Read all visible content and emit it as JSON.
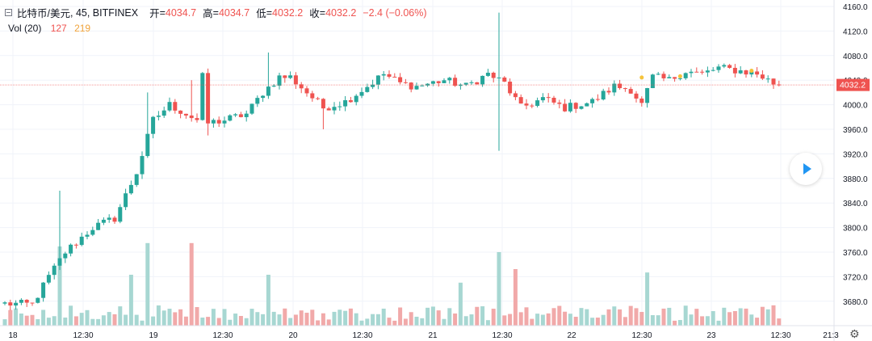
{
  "header": {
    "symbol": "比特币/美元",
    "interval": "45",
    "exchange": "BITFINEX",
    "open_label": "开",
    "open_value": "4034.7",
    "high_label": "高",
    "high_value": "4034.7",
    "low_label": "低",
    "low_value": "4032.2",
    "close_label": "收",
    "close_value": "4032.2",
    "change": "−2.4 (−0.06%)"
  },
  "volume_legend": {
    "label": "Vol (20)",
    "value_a": "127",
    "value_b": "219"
  },
  "price_tag": "4032.2",
  "colors": {
    "up": "#26a69a",
    "down": "#ef5350",
    "up_vol": "#a7d7d2",
    "down_vol": "#f1a9a9",
    "grid": "#f0f3fa",
    "dot": "#f5c33b"
  },
  "icons": [
    "collapse-icon",
    "play-icon",
    "gear-icon"
  ],
  "chart_data": {
    "type": "candlestick",
    "y_ticks": [
      "4160.0",
      "4120.0",
      "4080.0",
      "4040.0",
      "4000.0",
      "3960.0",
      "3920.0",
      "3880.0",
      "3840.0",
      "3800.0",
      "3760.0",
      "3720.0",
      "3680.0"
    ],
    "x_ticks": [
      "18",
      "12:30",
      "19",
      "12:30",
      "20",
      "12:30",
      "21",
      "12:30",
      "22",
      "12:30",
      "23",
      "12:30",
      "21:3"
    ],
    "ylim": [
      3664,
      4172
    ],
    "last_price": 4032.2,
    "anchors": [
      {
        "i": 0,
        "p": 3676
      },
      {
        "i": 5,
        "p": 3675
      },
      {
        "i": 8,
        "p": 3720
      },
      {
        "i": 11,
        "p": 3760
      },
      {
        "i": 16,
        "p": 3800
      },
      {
        "i": 20,
        "p": 3815
      },
      {
        "i": 24,
        "p": 3890
      },
      {
        "i": 27,
        "p": 3975
      },
      {
        "i": 30,
        "p": 4000
      },
      {
        "i": 33,
        "p": 3985
      },
      {
        "i": 35,
        "p": 3975
      },
      {
        "i": 36,
        "p": 4045
      },
      {
        "i": 37,
        "p": 3970
      },
      {
        "i": 40,
        "p": 3975
      },
      {
        "i": 44,
        "p": 3985
      },
      {
        "i": 47,
        "p": 4020
      },
      {
        "i": 50,
        "p": 4045
      },
      {
        "i": 52,
        "p": 4045
      },
      {
        "i": 55,
        "p": 4020
      },
      {
        "i": 58,
        "p": 3995
      },
      {
        "i": 62,
        "p": 4005
      },
      {
        "i": 66,
        "p": 4030
      },
      {
        "i": 69,
        "p": 4050
      },
      {
        "i": 72,
        "p": 4035
      },
      {
        "i": 75,
        "p": 4030
      },
      {
        "i": 80,
        "p": 4040
      },
      {
        "i": 84,
        "p": 4030
      },
      {
        "i": 88,
        "p": 4050
      },
      {
        "i": 91,
        "p": 4035
      },
      {
        "i": 94,
        "p": 3995
      },
      {
        "i": 98,
        "p": 4010
      },
      {
        "i": 102,
        "p": 3995
      },
      {
        "i": 107,
        "p": 4005
      },
      {
        "i": 111,
        "p": 4030
      },
      {
        "i": 114,
        "p": 4025
      },
      {
        "i": 116,
        "p": 4000
      },
      {
        "i": 118,
        "p": 4045
      },
      {
        "i": 121,
        "p": 4040
      },
      {
        "i": 124,
        "p": 4055
      },
      {
        "i": 127,
        "p": 4050
      },
      {
        "i": 130,
        "p": 4060
      },
      {
        "i": 134,
        "p": 4055
      },
      {
        "i": 137,
        "p": 4050
      },
      {
        "i": 140,
        "p": 4035
      }
    ],
    "wick_spikes": [
      {
        "i": 10,
        "high": 3860
      },
      {
        "i": 26,
        "high": 4020
      },
      {
        "i": 34,
        "high": 4040
      },
      {
        "i": 48,
        "high": 4085
      },
      {
        "i": 90,
        "high": 4150,
        "low": 3925
      },
      {
        "i": 37,
        "low": 3950
      },
      {
        "i": 58,
        "low": 3960
      }
    ],
    "volume_spikes": [
      {
        "i": 10,
        "v": 0.7
      },
      {
        "i": 26,
        "v": 0.73
      },
      {
        "i": 34,
        "v": 0.73
      },
      {
        "i": 23,
        "v": 0.45
      },
      {
        "i": 48,
        "v": 0.45
      },
      {
        "i": 83,
        "v": 0.38
      },
      {
        "i": 90,
        "v": 0.65
      },
      {
        "i": 93,
        "v": 0.5
      },
      {
        "i": 117,
        "v": 0.47
      }
    ],
    "dots": [
      {
        "i": 116,
        "p": 4043
      },
      {
        "i": 123,
        "p": 4045
      },
      {
        "i": 136,
        "p": 4054
      }
    ]
  }
}
